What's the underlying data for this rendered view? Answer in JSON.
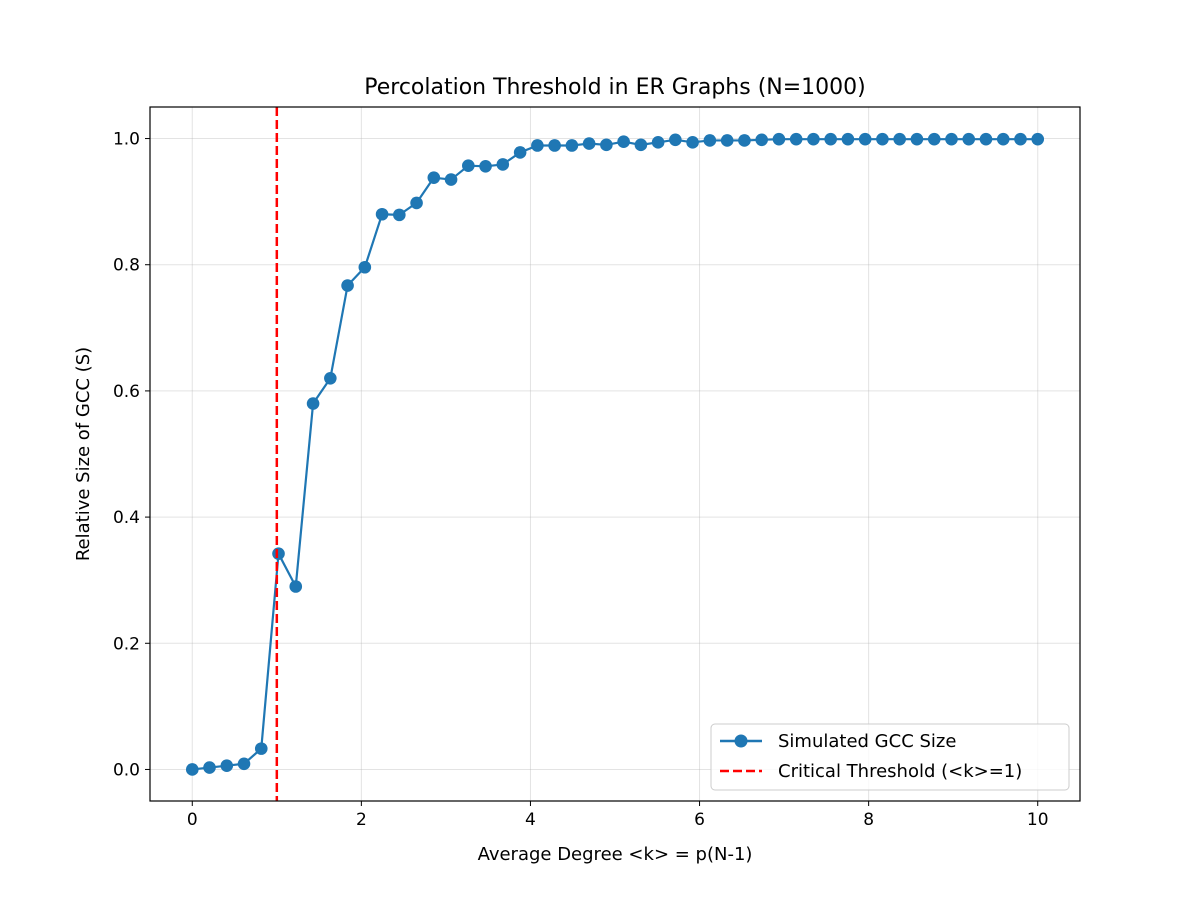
{
  "chart_data": {
    "type": "line",
    "title": "Percolation Threshold in ER Graphs (N=1000)",
    "xlabel": "Average Degree <k> = p(N-1)",
    "ylabel": "Relative Size of GCC (S)",
    "xlim": [
      -0.5,
      10.5
    ],
    "ylim": [
      -0.05,
      1.05
    ],
    "xticks": [
      0,
      2,
      4,
      6,
      8,
      10
    ],
    "xtick_labels": [
      "0",
      "2",
      "4",
      "6",
      "8",
      "10"
    ],
    "yticks": [
      0.0,
      0.2,
      0.4,
      0.6,
      0.8,
      1.0
    ],
    "ytick_labels": [
      "0.0",
      "0.2",
      "0.4",
      "0.6",
      "0.8",
      "1.0"
    ],
    "grid": true,
    "legend_position": "lower-right",
    "series": [
      {
        "name": "Simulated GCC Size",
        "color": "#1f77b4",
        "marker": "circle",
        "x": [
          0,
          0.204,
          0.408,
          0.612,
          0.816,
          1.02,
          1.224,
          1.429,
          1.633,
          1.837,
          2.041,
          2.245,
          2.449,
          2.653,
          2.857,
          3.061,
          3.265,
          3.469,
          3.673,
          3.878,
          4.082,
          4.286,
          4.49,
          4.694,
          4.898,
          5.102,
          5.306,
          5.51,
          5.714,
          5.918,
          6.122,
          6.327,
          6.531,
          6.735,
          6.939,
          7.143,
          7.347,
          7.551,
          7.755,
          7.959,
          8.163,
          8.367,
          8.571,
          8.776,
          8.98,
          9.184,
          9.388,
          9.592,
          9.796,
          10.0
        ],
        "y": [
          0.0,
          0.003,
          0.006,
          0.009,
          0.033,
          0.342,
          0.29,
          0.58,
          0.62,
          0.767,
          0.796,
          0.88,
          0.879,
          0.898,
          0.938,
          0.935,
          0.957,
          0.956,
          0.959,
          0.978,
          0.989,
          0.989,
          0.989,
          0.992,
          0.99,
          0.995,
          0.99,
          0.994,
          0.998,
          0.994,
          0.997,
          0.997,
          0.997,
          0.998,
          0.999,
          0.999,
          0.999,
          0.999,
          0.999,
          0.999,
          0.999,
          0.999,
          0.999,
          0.999,
          0.999,
          0.999,
          0.999,
          0.999,
          0.999,
          0.999
        ]
      }
    ],
    "threshold": {
      "name": "Critical Threshold (<k>=1)",
      "x": 1,
      "color": "#ff0000",
      "style": "dashed"
    }
  }
}
